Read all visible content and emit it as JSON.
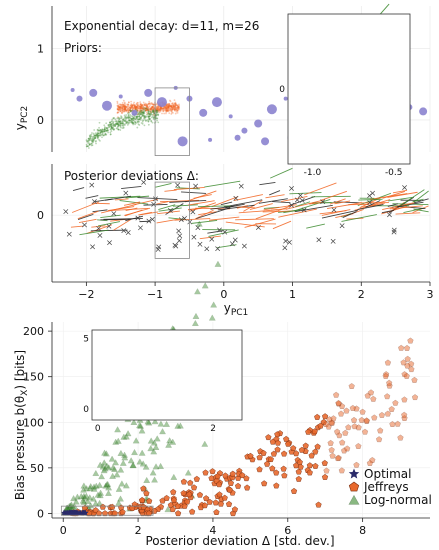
{
  "chart_data": [
    {
      "type": "scatter",
      "panel": "top-left: priors (PCA space)",
      "title": "Exponential decay: d=11, m=26",
      "annotation": "Priors:",
      "ylabel": "y_PC2",
      "ylabel_main": "y",
      "ylabel_sub": "PC2",
      "ylim": [
        -0.45,
        1.6
      ],
      "yticks": [
        0,
        1
      ],
      "series": [
        {
          "color": "#8b83cf",
          "points": [
            [
              -2.2,
              0.42
            ],
            [
              -2.1,
              0.3
            ],
            [
              -1.9,
              0.38
            ],
            [
              -1.7,
              0.2
            ],
            [
              -1.5,
              0.33
            ],
            [
              -1.3,
              0.1
            ],
            [
              -1.1,
              0.38
            ],
            [
              -0.9,
              0.25
            ],
            [
              -0.7,
              0.45
            ],
            [
              -0.5,
              0.3
            ],
            [
              -0.3,
              0.1
            ],
            [
              -0.1,
              0.25
            ],
            [
              0.1,
              0.05
            ],
            [
              0.3,
              -0.15
            ],
            [
              0.5,
              -0.05
            ],
            [
              0.7,
              0.15
            ],
            [
              0.9,
              0.3
            ],
            [
              1.1,
              0.1
            ],
            [
              1.3,
              -0.05
            ],
            [
              1.5,
              0.2
            ],
            [
              1.7,
              0.35
            ],
            [
              1.9,
              0.12
            ],
            [
              2.1,
              -0.12
            ],
            [
              2.3,
              0.28
            ],
            [
              2.5,
              0.05
            ],
            [
              2.7,
              0.18
            ],
            [
              2.9,
              0.12
            ],
            [
              -0.6,
              -0.3
            ],
            [
              -0.2,
              -0.28
            ],
            [
              0.2,
              -0.25
            ],
            [
              0.6,
              -0.3
            ],
            [
              1.0,
              -0.25
            ],
            [
              1.4,
              -0.2
            ],
            [
              1.8,
              -0.3
            ],
            [
              2.2,
              0.0
            ],
            [
              2.6,
              -0.1
            ]
          ]
        },
        {
          "color": "#f26522",
          "cluster": {
            "x": [
              -1.55,
              -0.65
            ],
            "y": [
              0.05,
              0.28
            ]
          }
        },
        {
          "color": "#3c8a2e",
          "cluster": {
            "x": [
              -2.0,
              -0.95
            ],
            "y": [
              -0.35,
              0.22
            ]
          }
        }
      ]
    },
    {
      "type": "scatter",
      "panel": "top-right inset: zoom of priors",
      "xlim": [
        -1.15,
        -0.4
      ],
      "ylim": [
        -0.55,
        0.55
      ],
      "xticks": [
        -1.0,
        -0.5
      ],
      "yticks": [
        0
      ]
    },
    {
      "type": "line",
      "panel": "middle: posterior deviations",
      "annotation": "Posterior deviations Δ:",
      "xlabel": "y_PC1",
      "xlabel_main": "y",
      "xlabel_sub": "PC1",
      "ylabel": "",
      "xlim": [
        -2.5,
        3.0
      ],
      "ylim": [
        -0.85,
        0.65
      ],
      "xticks": [
        -2,
        -1,
        0,
        1,
        2,
        3
      ],
      "yticks": [
        0
      ],
      "series": [
        {
          "name": "Optimal",
          "color": "#222222"
        },
        {
          "name": "Jeffreys",
          "color": "#f26522"
        },
        {
          "name": "Log-normal",
          "color": "#3c8a2e"
        }
      ]
    },
    {
      "type": "scatter",
      "panel": "bottom: bias pressure",
      "xlabel": "Posterior deviation Δ [std. dev.]",
      "ylabel": "Bias pressure b(θ_X) [bits]",
      "ylabel_main": "Bias pressure b(θ",
      "ylabel_sub": "X",
      "ylabel_end": ") [bits]",
      "xlim": [
        -0.3,
        9.8
      ],
      "ylim": [
        -5,
        210
      ],
      "xticks": [
        0,
        2,
        4,
        6,
        8
      ],
      "yticks": [
        0,
        50,
        100,
        150,
        200
      ],
      "legend_position": "bottom-right",
      "series": [
        {
          "name": "Optimal",
          "color": "#2a2a6a",
          "marker": "star"
        },
        {
          "name": "Jeffreys",
          "color": "#e8692d",
          "marker": "pentagon"
        },
        {
          "name": "Log-normal",
          "color": "#3c8a2e",
          "marker": "triangle"
        }
      ]
    },
    {
      "type": "scatter",
      "panel": "bottom inset: zoom near origin",
      "xlim": [
        -0.1,
        2.5
      ],
      "ylim": [
        -0.8,
        5.6
      ],
      "xticks": [
        0,
        2
      ],
      "yticks": [
        0,
        5
      ]
    }
  ]
}
